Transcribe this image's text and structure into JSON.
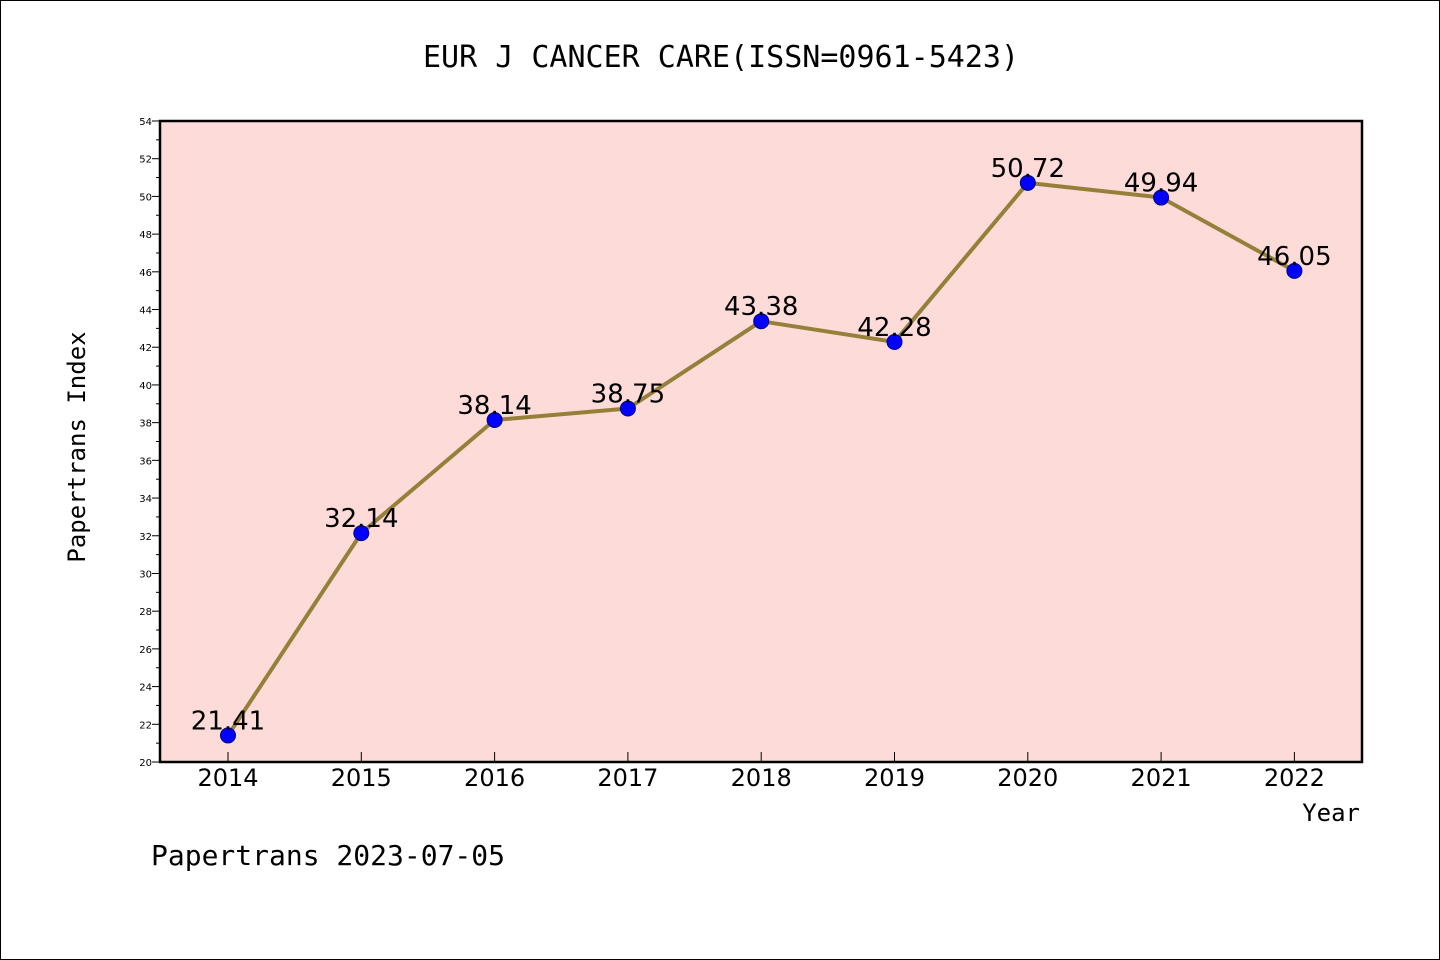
{
  "chart_data": {
    "type": "line",
    "title": "EUR J CANCER CARE(ISSN=0961-5423)",
    "xlabel": "Year",
    "ylabel": "Papertrans Index",
    "categories": [
      "2014",
      "2015",
      "2016",
      "2017",
      "2018",
      "2019",
      "2020",
      "2021",
      "2022"
    ],
    "series": [
      {
        "values": [
          21.41,
          32.14,
          38.14,
          38.75,
          43.38,
          42.28,
          50.72,
          49.94,
          46.05
        ],
        "data_labels": [
          "21.41",
          "32.14",
          "38.14",
          "38.75",
          "43.38",
          "42.28",
          "50.72",
          "49.94",
          "46.05"
        ]
      }
    ],
    "ylim": [
      20,
      54
    ],
    "yticks": [
      "20",
      "22",
      "24",
      "26",
      "28",
      "30",
      "32",
      "34",
      "36",
      "38",
      "40",
      "42",
      "44",
      "46",
      "48",
      "50",
      "52",
      "54"
    ],
    "grid": false,
    "legend": "none",
    "colors": {
      "plot_background": "#FDDBD8",
      "line": "#968039",
      "marker_fill": "#0000FF",
      "marker_stroke": "#000080"
    }
  },
  "footer": {
    "watermark": "Papertrans 2023-07-05"
  }
}
